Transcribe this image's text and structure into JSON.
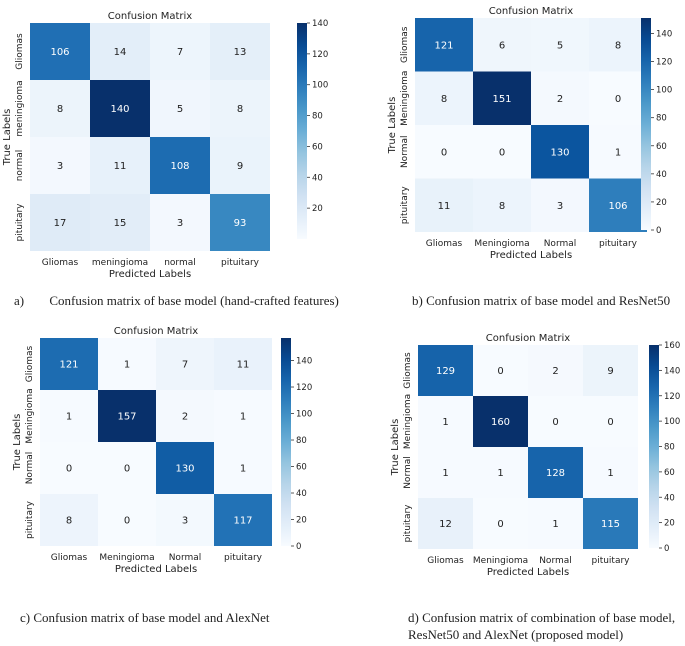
{
  "chart_data": [
    {
      "type": "heatmap",
      "title": "Confusion Matrix",
      "xlabel": "Predicted Labels",
      "ylabel": "True Labels",
      "x_categories": [
        "Gliomas",
        "meningioma",
        "normal",
        "pituitary"
      ],
      "y_categories": [
        "Gliomas",
        "meningioma",
        "normal",
        "pituitary"
      ],
      "values": [
        [
          106,
          14,
          7,
          13
        ],
        [
          8,
          140,
          5,
          8
        ],
        [
          3,
          11,
          108,
          9
        ],
        [
          17,
          15,
          3,
          93
        ]
      ],
      "colorbar_range": [
        0,
        140
      ],
      "colorbar_ticks": [
        20,
        40,
        60,
        80,
        100,
        120,
        140
      ],
      "caption_marker": "a)",
      "caption": "Confusion matrix of base model (hand-crafted features)"
    },
    {
      "type": "heatmap",
      "title": "Confusion Matrix",
      "xlabel": "Predicted Labels",
      "ylabel": "True Labels",
      "x_categories": [
        "Gliomas",
        "Meningioma",
        "Normal",
        "pituitary"
      ],
      "y_categories": [
        "Gliomas",
        "Meningioma",
        "Normal",
        "pituitary"
      ],
      "values": [
        [
          121,
          6,
          5,
          8
        ],
        [
          8,
          151,
          2,
          0
        ],
        [
          0,
          0,
          130,
          1
        ],
        [
          11,
          8,
          3,
          106
        ]
      ],
      "colorbar_range": [
        0,
        151
      ],
      "colorbar_ticks": [
        0,
        20,
        40,
        60,
        80,
        100,
        120,
        140
      ],
      "caption": "b) Confusion matrix of base model and ResNet50"
    },
    {
      "type": "heatmap",
      "title": "Confusion Matrix",
      "xlabel": "Predicted Labels",
      "ylabel": "True Labels",
      "x_categories": [
        "Gliomas",
        "Meningioma",
        "Normal",
        "pituitary"
      ],
      "y_categories": [
        "Gliomas",
        "Meningioma",
        "Normal",
        "pituitary"
      ],
      "values": [
        [
          121,
          1,
          7,
          11
        ],
        [
          1,
          157,
          2,
          1
        ],
        [
          0,
          0,
          130,
          1
        ],
        [
          8,
          0,
          3,
          117
        ]
      ],
      "colorbar_range": [
        0,
        157
      ],
      "colorbar_ticks": [
        0,
        20,
        40,
        60,
        80,
        100,
        120,
        140
      ],
      "caption": "c) Confusion matrix of base model and AlexNet"
    },
    {
      "type": "heatmap",
      "title": "Confusion Matrix",
      "xlabel": "Predicted Labels",
      "ylabel": "True Labels",
      "x_categories": [
        "Gliomas",
        "Meningioma",
        "Normal",
        "pituitary"
      ],
      "y_categories": [
        "Gliomas",
        "Meningioma",
        "Normal",
        "pituitary"
      ],
      "values": [
        [
          129,
          0,
          2,
          9
        ],
        [
          1,
          160,
          0,
          0
        ],
        [
          1,
          1,
          128,
          1
        ],
        [
          12,
          0,
          1,
          115
        ]
      ],
      "colorbar_range": [
        0,
        160
      ],
      "colorbar_ticks": [
        0,
        20,
        40,
        60,
        80,
        100,
        120,
        140,
        160
      ],
      "caption": "d) Confusion matrix of combination of base model, ResNet50 and AlexNet (proposed model)"
    }
  ]
}
